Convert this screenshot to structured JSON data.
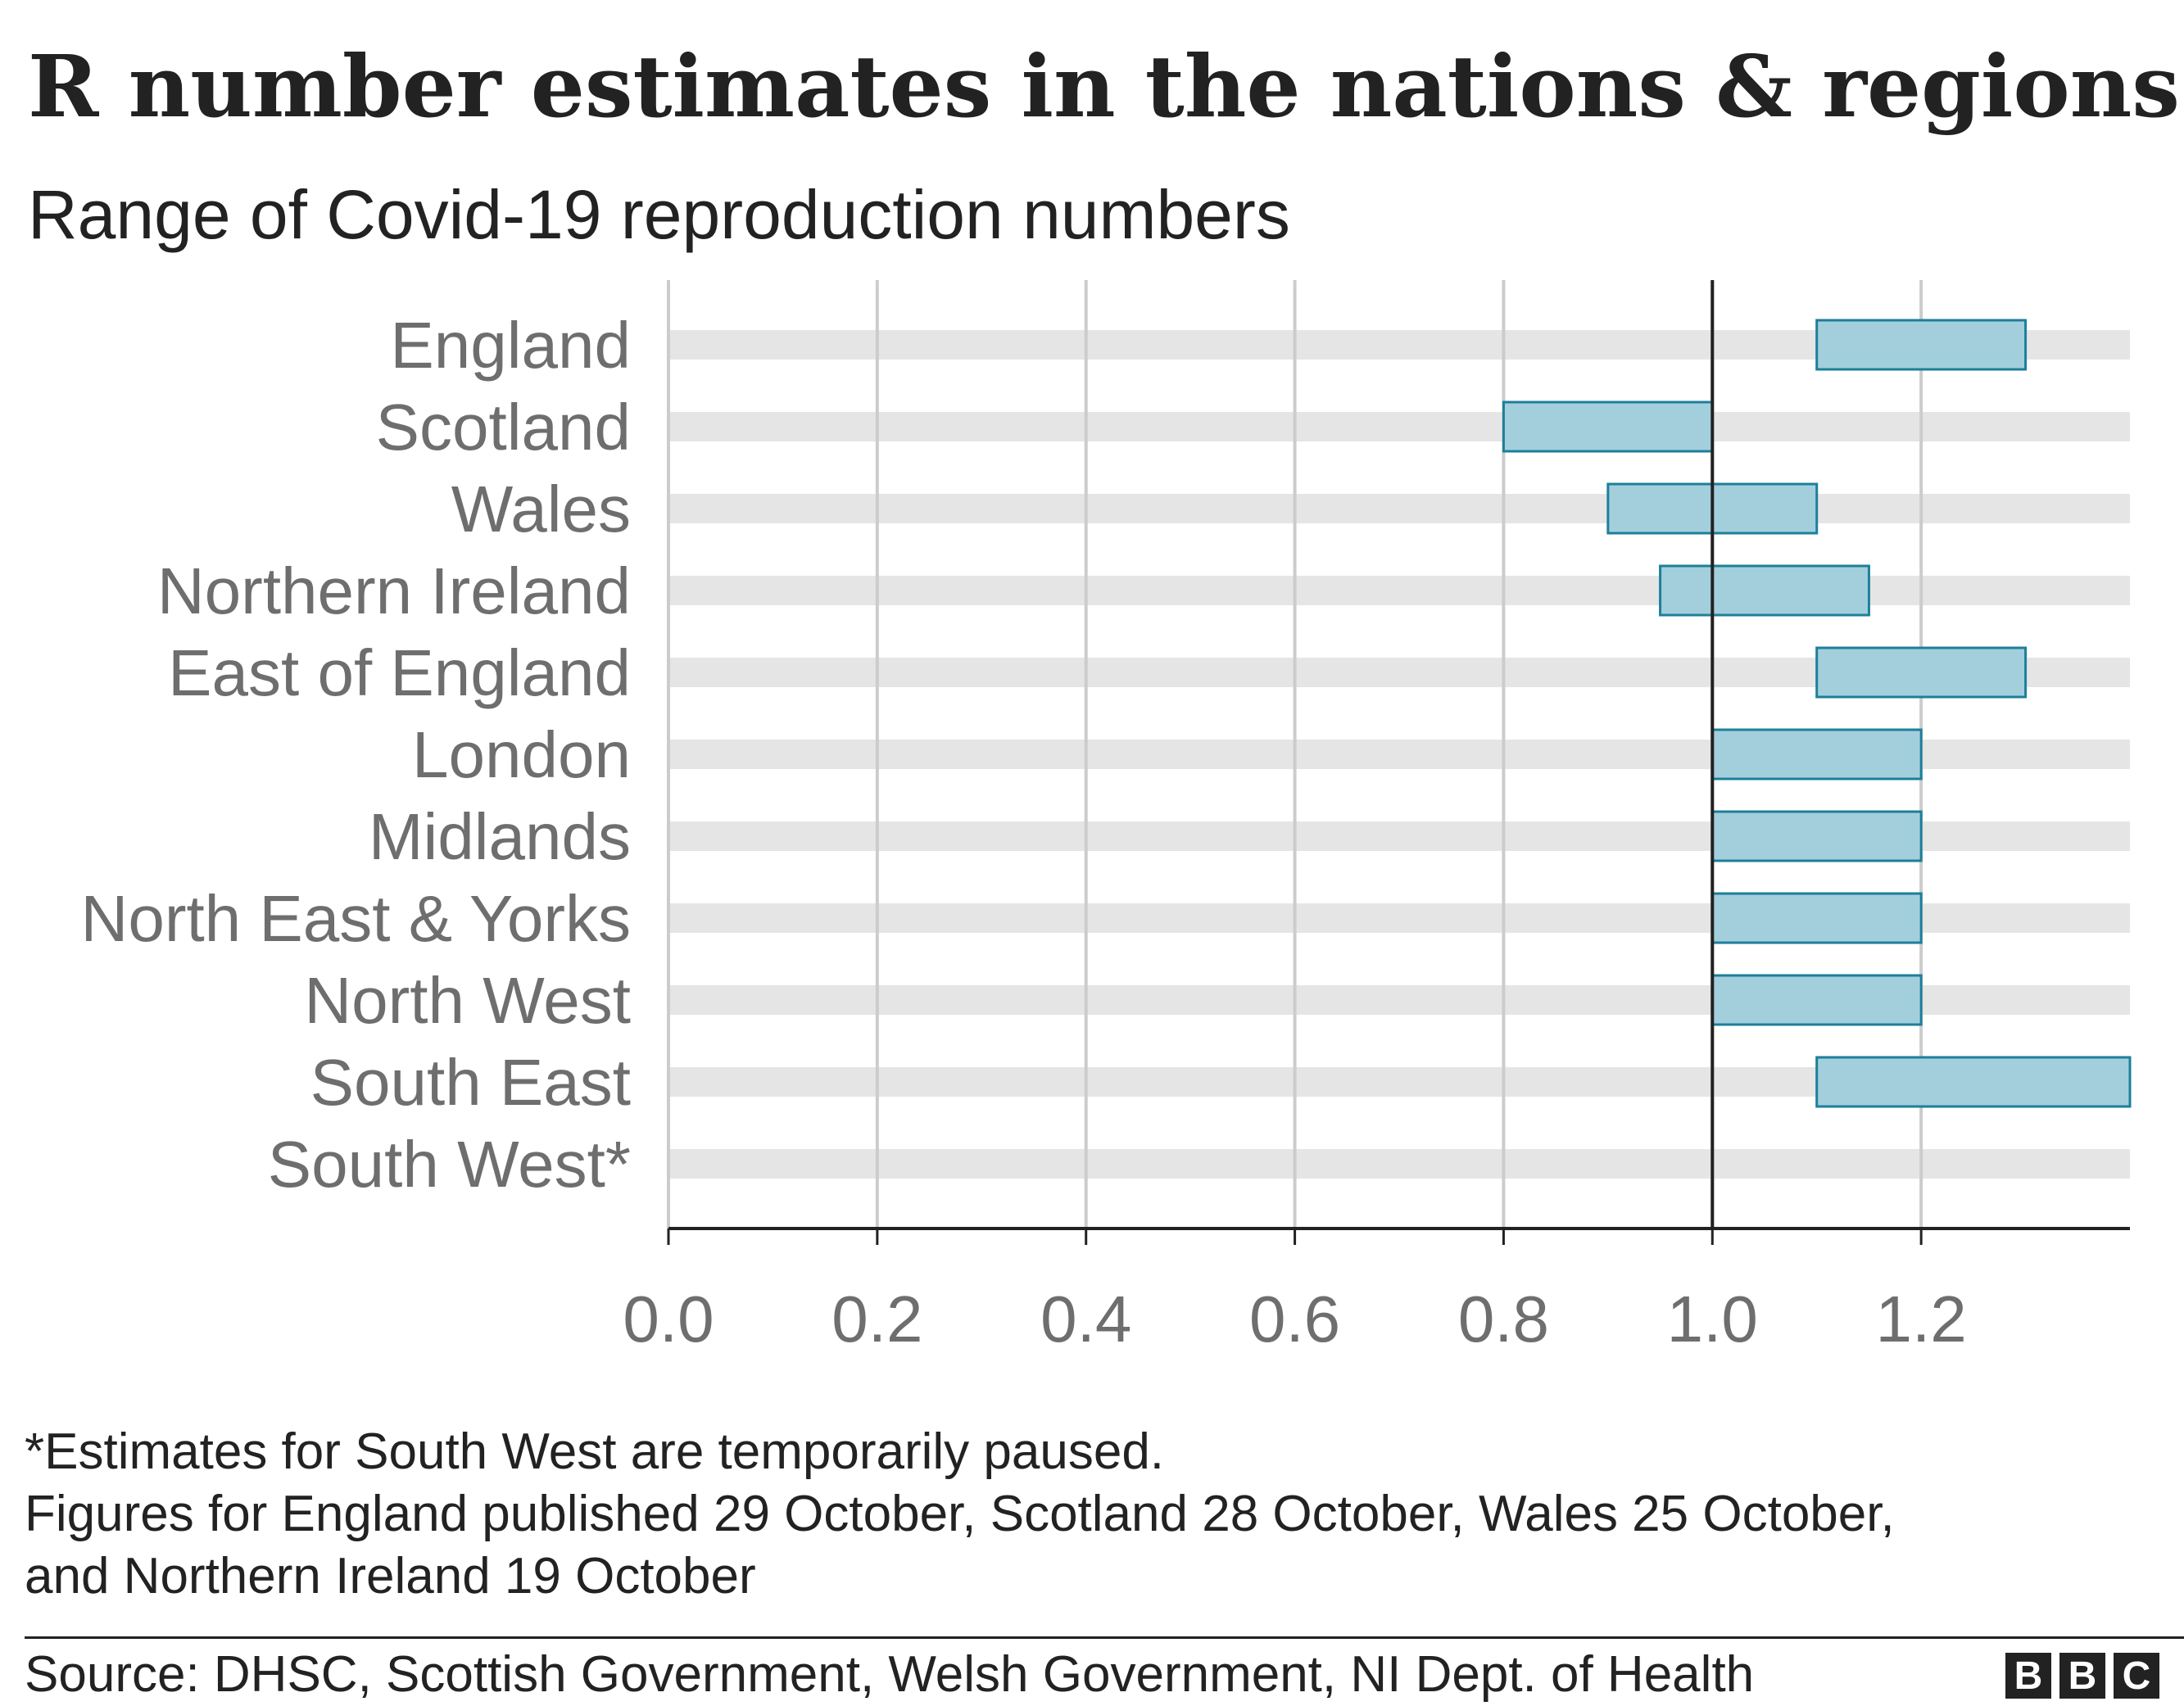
{
  "chart_data": {
    "type": "range-bar",
    "title": "R number estimates in the nations & regions",
    "subtitle": "Range of Covid-19 reproduction numbers",
    "categories": [
      "England",
      "Scotland",
      "Wales",
      "Northern Ireland",
      "East of England",
      "London",
      "Midlands",
      "North East & Yorks",
      "North West",
      "South East",
      "South West*"
    ],
    "ranges": [
      {
        "category": "England",
        "low": 1.1,
        "high": 1.3
      },
      {
        "category": "Scotland",
        "low": 0.8,
        "high": 1.0
      },
      {
        "category": "Wales",
        "low": 0.9,
        "high": 1.1
      },
      {
        "category": "Northern Ireland",
        "low": 0.95,
        "high": 1.15
      },
      {
        "category": "East of England",
        "low": 1.1,
        "high": 1.3
      },
      {
        "category": "London",
        "low": 1.0,
        "high": 1.2
      },
      {
        "category": "Midlands",
        "low": 1.0,
        "high": 1.2
      },
      {
        "category": "North East & Yorks",
        "low": 1.0,
        "high": 1.2
      },
      {
        "category": "North West",
        "low": 1.0,
        "high": 1.2
      },
      {
        "category": "South East",
        "low": 1.1,
        "high": 1.4
      },
      {
        "category": "South West*",
        "low": null,
        "high": null
      }
    ],
    "x_ticks": [
      "0.0",
      "0.2",
      "0.4",
      "0.6",
      "0.8",
      "1.0",
      "1.2"
    ],
    "tick_values": [
      0,
      0.2,
      0.4,
      0.6,
      0.8,
      1.0,
      1.2
    ],
    "xlim": [
      0,
      1.4
    ],
    "reference_line": 1.0,
    "xlabel": "",
    "ylabel": "",
    "grid": true,
    "colors": {
      "bar_fill": "#a3cfdd",
      "bar_stroke": "#1d7f9a",
      "track": "#e5e5e5",
      "gridline": "#cccccc",
      "reference": "#222222",
      "axis": "#222222"
    }
  },
  "footnotes": {
    "line1": "*Estimates for South West are temporarily paused.",
    "line2": "Figures for England published 29 October, Scotland 28 October, Wales 25 October,",
    "line3": "and Northern Ireland 19 October"
  },
  "source": "Source: DHSC, Scottish Government, Welsh Government, NI Dept. of Health",
  "logo": {
    "letters": [
      "B",
      "B",
      "C"
    ]
  }
}
